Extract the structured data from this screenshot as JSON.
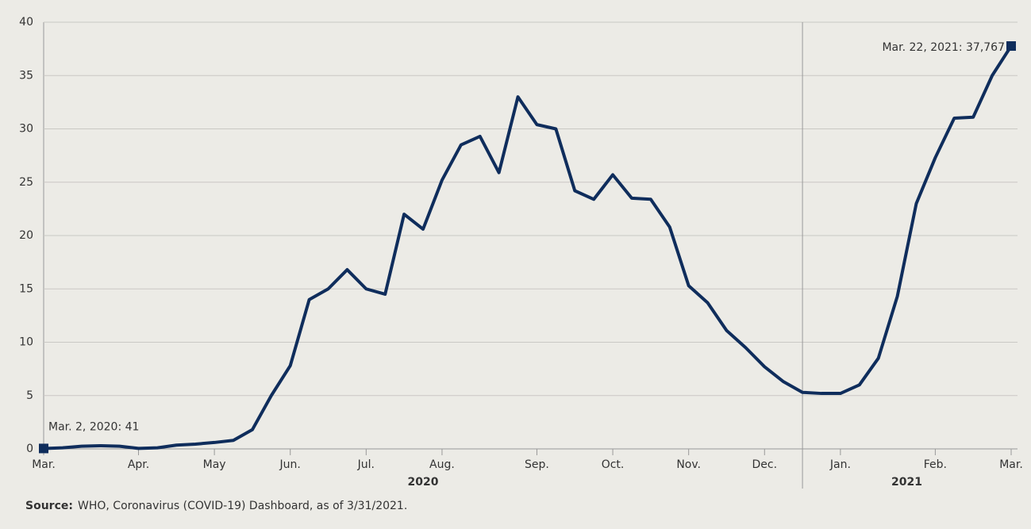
{
  "chart_data": {
    "type": "line",
    "categories": [
      "Mar.",
      null,
      null,
      null,
      null,
      "Apr.",
      null,
      null,
      null,
      "May",
      null,
      null,
      null,
      "Jun.",
      null,
      null,
      null,
      "Jul.",
      null,
      null,
      null,
      "Aug.",
      null,
      null,
      null,
      null,
      "Sep.",
      null,
      null,
      null,
      "Oct.",
      null,
      null,
      null,
      "Nov.",
      null,
      null,
      null,
      "Dec.",
      null,
      null,
      null,
      "Jan.",
      null,
      null,
      null,
      null,
      "Feb.",
      null,
      null,
      null,
      "Mar."
    ],
    "years": [
      "2020",
      "2021"
    ],
    "series": [
      {
        "color": "#0f2d5c",
        "values": [
          0.041,
          0.1,
          0.25,
          0.3,
          0.25,
          0.05,
          0.1,
          0.35,
          0.45,
          0.6,
          0.8,
          1.8,
          5,
          7.8,
          14,
          15,
          16.8,
          15,
          14.5,
          22,
          20.6,
          25.2,
          28.5,
          29.3,
          25.9,
          33,
          30.4,
          30,
          24.2,
          23.4,
          25.7,
          23.5,
          23.4,
          20.8,
          15.3,
          13.7,
          11.1,
          9.5,
          7.7,
          6.3,
          5.3,
          5.2,
          5.2,
          6,
          8.5,
          14.3,
          23,
          27.3,
          31,
          31.1,
          35,
          37.767
        ]
      }
    ],
    "annotations": [
      "Mar. 2, 2020: 41",
      "Mar. 22, 2021: 37,767"
    ],
    "ylim": [
      0,
      40
    ],
    "yticks": [
      0,
      5,
      10,
      15,
      20,
      25,
      30,
      35,
      40
    ],
    "grid": true,
    "source_label": "Source:",
    "source_text": "WHO, Coronavirus (COVID-19) Dashboard, as of 3/31/2021."
  }
}
